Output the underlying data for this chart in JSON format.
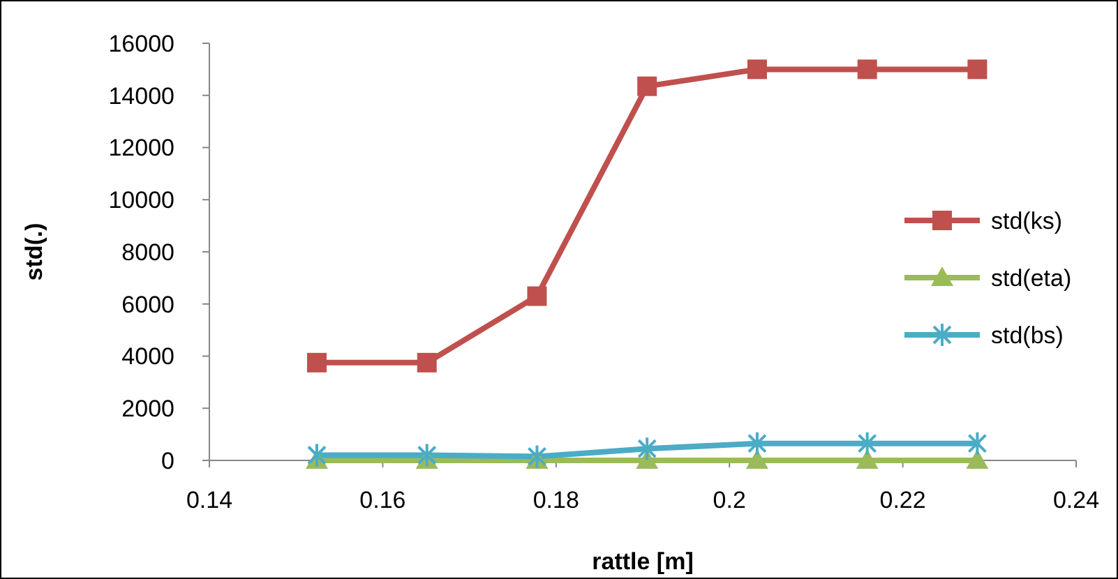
{
  "chart_data": {
    "type": "line",
    "xlabel": "rattle [m]",
    "ylabel": "std(.)",
    "x": [
      0.1524,
      0.1651,
      0.1778,
      0.1905,
      0.2032,
      0.2159,
      0.2286
    ],
    "xlim": [
      0.14,
      0.24
    ],
    "xticks": [
      0.14,
      0.16,
      0.18,
      0.2,
      0.22,
      0.24
    ],
    "ylim": [
      0,
      16000
    ],
    "yticks": [
      0,
      2000,
      4000,
      6000,
      8000,
      10000,
      12000,
      14000,
      16000
    ],
    "grid": false,
    "legend": "right",
    "line_style": "solid",
    "series": [
      {
        "name": "std(ks)",
        "color": "#c0504d",
        "marker": "square",
        "values": [
          3750,
          3750,
          6300,
          14350,
          15000,
          15000,
          15000
        ]
      },
      {
        "name": "std(eta)",
        "color": "#9bbb59",
        "marker": "triangle",
        "values": [
          0,
          0,
          0,
          0,
          0,
          0,
          0
        ]
      },
      {
        "name": "std(bs)",
        "color": "#4bacc6",
        "marker": "cross",
        "values": [
          200,
          200,
          150,
          450,
          650,
          650,
          650
        ]
      }
    ]
  }
}
